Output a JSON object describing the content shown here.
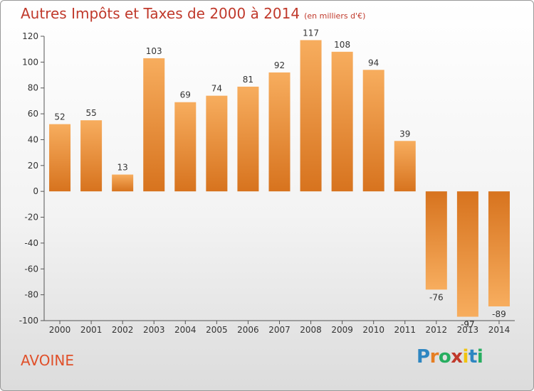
{
  "header": {
    "title": "Autres Impôts et Taxes de 2000 à 2014",
    "unit": "(en milliers d'€)"
  },
  "footer": {
    "commune": "AVOINE",
    "logo_text": "Proxiti"
  },
  "colors": {
    "title": "#c0392b",
    "bar_light": "#f5a552",
    "bar_dark": "#d97520",
    "commune": "#e0502a"
  },
  "chart_data": {
    "type": "bar",
    "title": "Autres Impôts et Taxes de 2000 à 2014",
    "subtitle": "(en milliers d'€)",
    "categories": [
      "2000",
      "2001",
      "2002",
      "2003",
      "2004",
      "2005",
      "2006",
      "2007",
      "2008",
      "2009",
      "2010",
      "2011",
      "2012",
      "2013",
      "2014"
    ],
    "values": [
      52,
      55,
      13,
      103,
      69,
      74,
      81,
      92,
      117,
      108,
      94,
      39,
      -76,
      -97,
      -89
    ],
    "data_labels": [
      "52",
      "55",
      "13",
      "103",
      "69",
      "74",
      "81",
      "92",
      "117",
      "108",
      "94",
      "39",
      "-76",
      "-97",
      "-89"
    ],
    "ylim": [
      -100,
      120
    ],
    "yticks": [
      -100,
      -80,
      -60,
      -40,
      -20,
      0,
      20,
      40,
      60,
      80,
      100,
      120
    ],
    "grid": false
  }
}
